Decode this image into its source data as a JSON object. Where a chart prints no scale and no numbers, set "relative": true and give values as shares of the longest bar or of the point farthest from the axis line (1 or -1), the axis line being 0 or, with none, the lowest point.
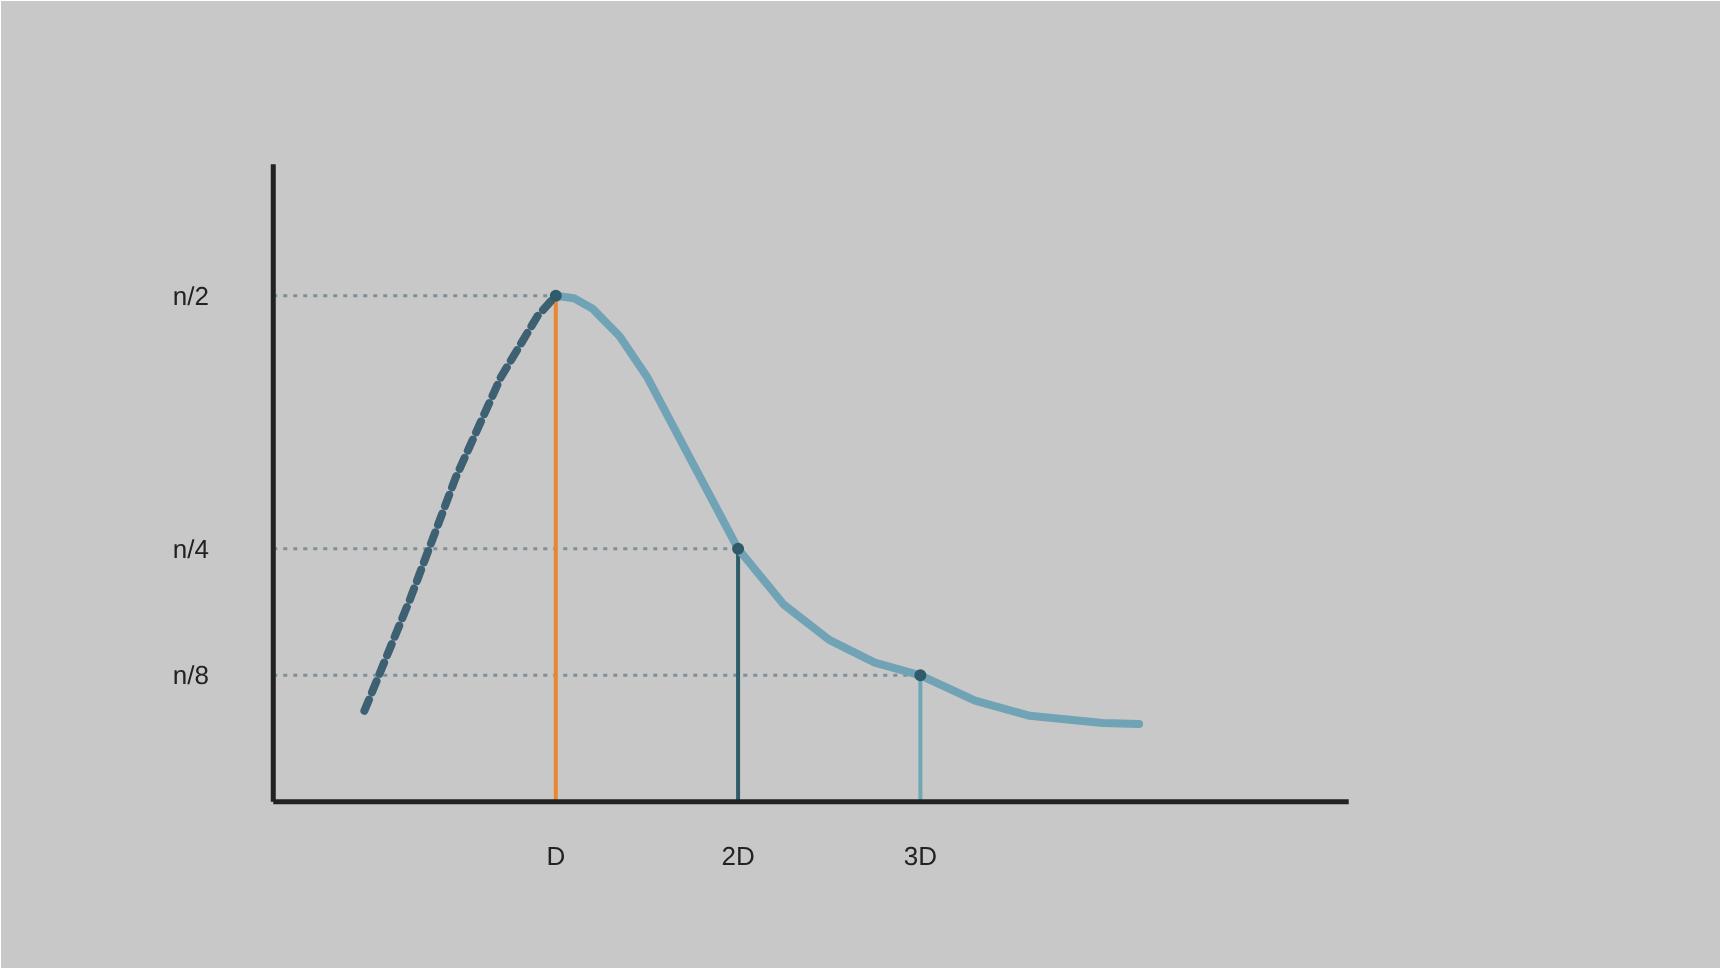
{
  "chart_data": {
    "type": "line",
    "relative": true,
    "series": [
      {
        "color": "#3d6072",
        "line_style": "dashed",
        "x": [
          -0.05,
          0.2,
          0.45,
          0.7,
          0.9,
          1.0
        ],
        "values": [
          0.18,
          0.4,
          0.64,
          0.84,
          0.96,
          1
        ]
      },
      {
        "color": "#6fa3b5",
        "line_style": "solid",
        "x": [
          1.0,
          1.1,
          1.2,
          1.35,
          1.5,
          1.75,
          2.0,
          2.25,
          2.5,
          2.75,
          3.0,
          3.3,
          3.6,
          4.0,
          4.2
        ],
        "values": [
          1,
          0.995,
          0.975,
          0.92,
          0.84,
          0.67,
          0.5,
          0.39,
          0.32,
          0.275,
          0.25,
          0.2,
          0.17,
          0.156,
          0.154
        ]
      },
      {
        "type": "scatter",
        "color": "#2f5b6a",
        "marker": "circle",
        "x": [
          1,
          2,
          3
        ],
        "values": [
          1,
          0.5,
          0.25
        ]
      }
    ],
    "xlim": [
      -0.55,
      5.35
    ],
    "xticks": [
      {
        "value": 1,
        "label": "D"
      },
      {
        "value": 2,
        "label": "2D"
      },
      {
        "value": 3,
        "label": "3D"
      }
    ],
    "ref_lines": [
      {
        "axis": "y",
        "value": 1,
        "label": "n/2",
        "color": "#7f8f96",
        "line_style": "dotted"
      },
      {
        "axis": "y",
        "value": 0.5,
        "label": "n/4",
        "color": "#7f8f96",
        "line_style": "dotted"
      },
      {
        "axis": "y",
        "value": 0.25,
        "label": "n/8",
        "color": "#7f8f96",
        "line_style": "dotted"
      },
      {
        "axis": "x",
        "value": 1,
        "color": "#e8872f",
        "line_style": "solid"
      },
      {
        "axis": "x",
        "value": 2,
        "color": "#2f5b6a",
        "line_style": "solid"
      },
      {
        "axis": "x",
        "value": 3,
        "color": "#6fa8b5",
        "line_style": "solid"
      }
    ],
    "grid": false
  }
}
